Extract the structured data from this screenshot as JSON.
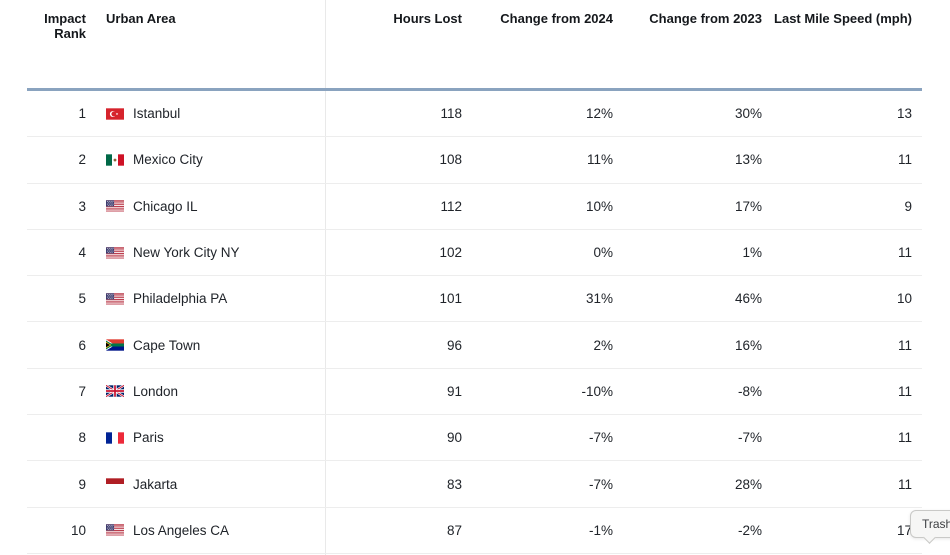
{
  "table": {
    "columns": [
      {
        "id": "impact_rank",
        "label": "Impact Rank",
        "align": "rank"
      },
      {
        "id": "urban_area",
        "label": "Urban Area",
        "align": "left"
      },
      {
        "id": "hours_lost",
        "label": "Hours Lost",
        "align": "right"
      },
      {
        "id": "change_2024",
        "label": "Change from 2024",
        "align": "right"
      },
      {
        "id": "change_2023",
        "label": "Change from 2023",
        "align": "right"
      },
      {
        "id": "last_mile_speed",
        "label": "Last Mile Speed (mph)",
        "align": "right"
      }
    ],
    "rows": [
      {
        "rank": "1",
        "flag": "tr",
        "city": "Istanbul",
        "hours_lost": "118",
        "change_2024": "12%",
        "change_2023": "30%",
        "last_mile_speed": "13"
      },
      {
        "rank": "2",
        "flag": "mx",
        "city": "Mexico City",
        "hours_lost": "108",
        "change_2024": "11%",
        "change_2023": "13%",
        "last_mile_speed": "11"
      },
      {
        "rank": "3",
        "flag": "us",
        "city": "Chicago IL",
        "hours_lost": "112",
        "change_2024": "10%",
        "change_2023": "17%",
        "last_mile_speed": "9"
      },
      {
        "rank": "4",
        "flag": "us",
        "city": "New York City NY",
        "hours_lost": "102",
        "change_2024": "0%",
        "change_2023": "1%",
        "last_mile_speed": "11"
      },
      {
        "rank": "5",
        "flag": "us",
        "city": "Philadelphia PA",
        "hours_lost": "101",
        "change_2024": "31%",
        "change_2023": "46%",
        "last_mile_speed": "10"
      },
      {
        "rank": "6",
        "flag": "za",
        "city": "Cape Town",
        "hours_lost": "96",
        "change_2024": "2%",
        "change_2023": "16%",
        "last_mile_speed": "11"
      },
      {
        "rank": "7",
        "flag": "gb",
        "city": "London",
        "hours_lost": "91",
        "change_2024": "-10%",
        "change_2023": "-8%",
        "last_mile_speed": "11"
      },
      {
        "rank": "8",
        "flag": "fr",
        "city": "Paris",
        "hours_lost": "90",
        "change_2024": "-7%",
        "change_2023": "-7%",
        "last_mile_speed": "11"
      },
      {
        "rank": "9",
        "flag": "id",
        "city": "Jakarta",
        "hours_lost": "83",
        "change_2024": "-7%",
        "change_2023": "28%",
        "last_mile_speed": "11"
      },
      {
        "rank": "10",
        "flag": "us",
        "city": "Los Angeles CA",
        "hours_lost": "87",
        "change_2024": "-1%",
        "change_2023": "-2%",
        "last_mile_speed": "17"
      }
    ]
  },
  "tooltip": {
    "label": "Trash"
  },
  "colors": {
    "header_border": "#8aa3bf",
    "row_border": "#ededed",
    "divider": "#e9e9e9",
    "text": "#20242a"
  }
}
